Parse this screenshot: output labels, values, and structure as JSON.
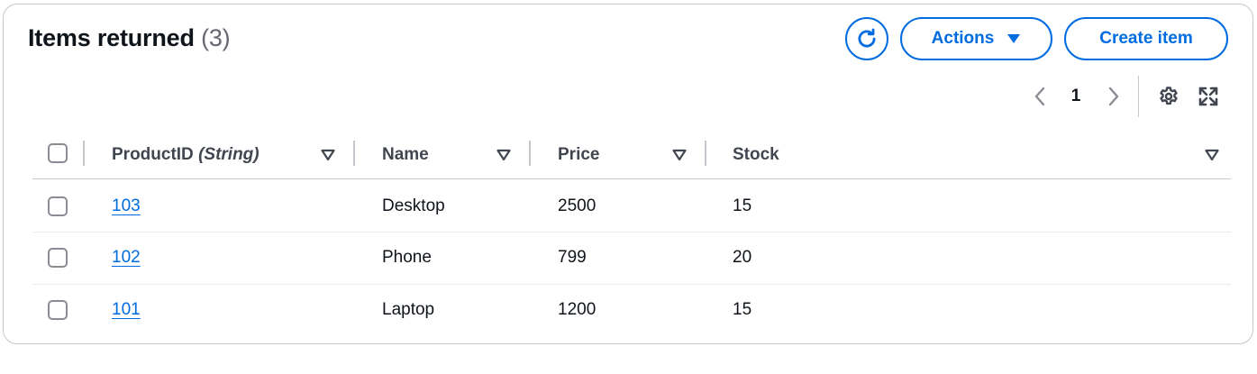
{
  "header": {
    "title": "Items returned",
    "count": "(3)"
  },
  "toolbar": {
    "refresh_icon": "refresh-icon",
    "actions_label": "Actions",
    "create_label": "Create item"
  },
  "pagination": {
    "current_page": "1",
    "prev_icon": "chevron-left-icon",
    "next_icon": "chevron-right-icon"
  },
  "preferences": {
    "settings_icon": "gear-icon",
    "fullscreen_icon": "fullscreen-icon"
  },
  "table": {
    "columns": [
      {
        "label": "ProductID",
        "type": "(String)"
      },
      {
        "label": "Name"
      },
      {
        "label": "Price"
      },
      {
        "label": "Stock"
      }
    ],
    "rows": [
      {
        "product_id": "103",
        "name": "Desktop",
        "price": "2500",
        "stock": "15"
      },
      {
        "product_id": "102",
        "name": "Phone",
        "price": "799",
        "stock": "20"
      },
      {
        "product_id": "101",
        "name": "Laptop",
        "price": "1200",
        "stock": "15"
      }
    ]
  },
  "colors": {
    "accent": "#006ce0",
    "text": "#0f141a",
    "muted": "#656871",
    "border": "#c6c6cd"
  }
}
